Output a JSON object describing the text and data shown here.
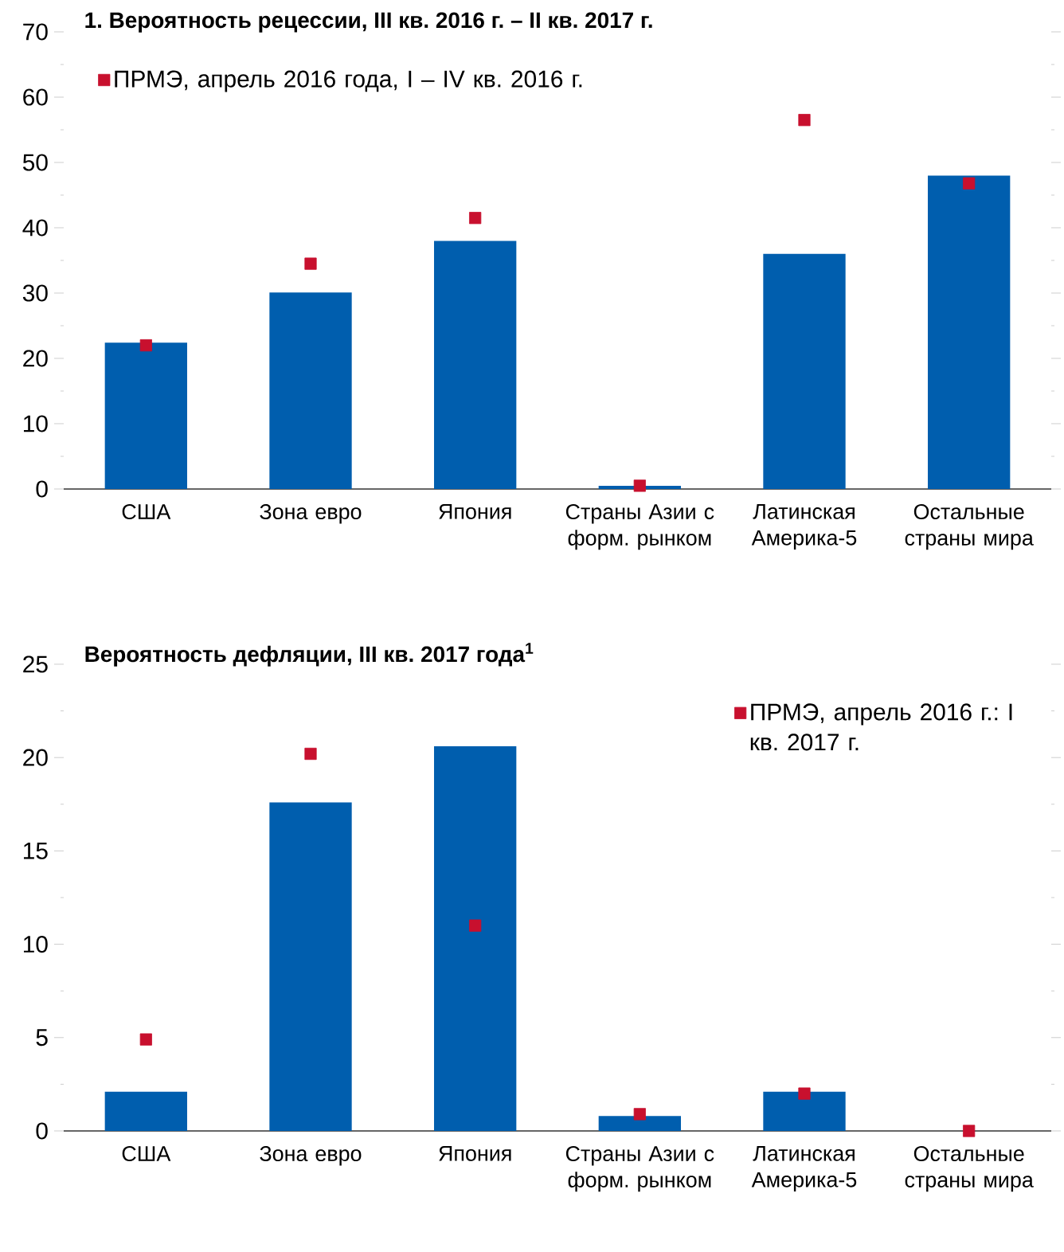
{
  "chart_data": [
    {
      "type": "bar",
      "title": "1. Вероятность рецессии, III кв. 2016 г. – II кв. 2017 г.",
      "categories": [
        "США",
        "Зона евро",
        "Япония",
        "Страны Азии с форм. рынком",
        "Латинская Америка-5",
        "Остальные страны мира"
      ],
      "series": [
        {
          "color": "#005eae",
          "values": [
            22.4,
            30.1,
            38,
            0.5,
            36,
            48
          ]
        },
        {
          "type": "scatter",
          "name": "ПРМЭ, апрель 2016 года, I – IV кв. 2016 г.",
          "color": "#c8102e",
          "values": [
            22,
            34.5,
            41.5,
            0.5,
            56.5,
            46.8
          ]
        }
      ],
      "ylim": [
        0,
        70
      ],
      "yticks": [
        0,
        {
          "value": 5,
          "label": null
        },
        10,
        {
          "value": 15,
          "label": null
        },
        20,
        {
          "value": 25,
          "label": null
        },
        30,
        {
          "value": 35,
          "label": null
        },
        40,
        {
          "value": 45,
          "label": null
        },
        50,
        {
          "value": 55,
          "label": null
        },
        60,
        {
          "value": 65,
          "label": null
        },
        70
      ],
      "legend": "top left",
      "marker": "square"
    },
    {
      "type": "bar",
      "title": "Вероятность дефляции, III кв. 2017 года$^{1}$",
      "categories": [
        "США",
        "Зона евро",
        "Япония",
        "Страны Азии с форм. рынком",
        "Латинская Америка-5",
        "Остальные страны мира"
      ],
      "series": [
        {
          "color": "#005eae",
          "values": [
            2.1,
            17.6,
            20.6,
            0.8,
            2.1,
            0
          ]
        },
        {
          "type": "scatter",
          "name": "ПРМЭ, апрель 2016 г.: I кв. 2017 г.",
          "color": "#c8102e",
          "values": [
            4.9,
            20.2,
            11.0,
            0.9,
            2.0,
            0
          ]
        }
      ],
      "ylim": [
        0,
        25
      ],
      "yticks": [
        0,
        {
          "value": 2.5,
          "label": null
        },
        5,
        {
          "value": 7.5,
          "label": null
        },
        10,
        {
          "value": 12.5,
          "label": null
        },
        15,
        {
          "value": 17.5,
          "label": null
        },
        20,
        {
          "value": 22.5,
          "label": null
        },
        25
      ],
      "legend": "top right",
      "marker": "square"
    }
  ]
}
